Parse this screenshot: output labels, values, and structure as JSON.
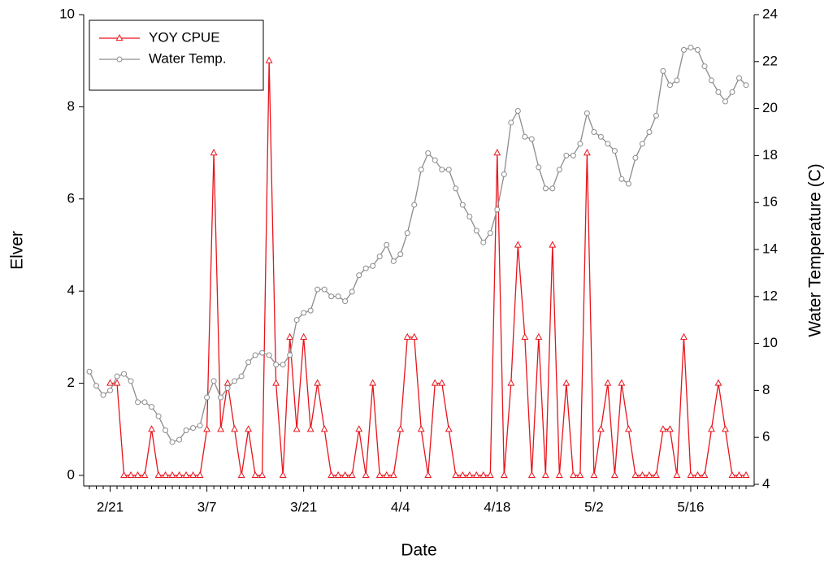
{
  "chart_data": {
    "type": "line",
    "x_label": "Date",
    "y_label": "Elver",
    "y2_label": "Water Temperature (C)",
    "categories": [
      null,
      null,
      null,
      "2/21",
      null,
      null,
      null,
      null,
      null,
      null,
      null,
      null,
      null,
      null,
      null,
      null,
      null,
      "3/7",
      null,
      null,
      null,
      null,
      null,
      null,
      null,
      null,
      null,
      null,
      null,
      null,
      null,
      "3/21",
      null,
      null,
      null,
      null,
      null,
      null,
      null,
      null,
      null,
      null,
      null,
      null,
      null,
      "4/4",
      null,
      null,
      null,
      null,
      null,
      null,
      null,
      null,
      null,
      null,
      null,
      null,
      null,
      "4/18",
      null,
      null,
      null,
      null,
      null,
      null,
      null,
      null,
      null,
      null,
      null,
      null,
      null,
      "5/2",
      null,
      null,
      null,
      null,
      null,
      null,
      null,
      null,
      null,
      null,
      null,
      null,
      null,
      "5/16",
      null,
      null,
      null,
      null,
      null,
      null,
      null,
      null
    ],
    "series": [
      {
        "name": "YOY CPUE",
        "color": "#e8141c",
        "marker": "triangle",
        "axis": "y",
        "values": [
          null,
          null,
          null,
          2,
          2,
          0,
          0,
          0,
          0,
          1,
          0,
          0,
          0,
          0,
          0,
          0,
          0,
          1,
          7,
          1,
          2,
          1,
          0,
          1,
          0,
          0,
          9,
          2,
          0,
          3,
          1,
          3,
          1,
          2,
          1,
          0,
          0,
          0,
          0,
          1,
          0,
          2,
          0,
          0,
          0,
          1,
          3,
          3,
          1,
          0,
          2,
          2,
          1,
          0,
          0,
          0,
          0,
          0,
          0,
          7,
          0,
          2,
          5,
          3,
          0,
          3,
          0,
          5,
          0,
          2,
          0,
          0,
          7,
          0,
          1,
          2,
          0,
          2,
          1,
          0,
          0,
          0,
          0,
          1,
          1,
          0,
          3,
          0,
          0,
          0,
          1,
          2,
          1,
          0,
          0,
          0
        ]
      },
      {
        "name": "Water Temp.",
        "color": "#8c8c8c",
        "marker": "circle",
        "axis": "y2",
        "values": [
          8.8,
          8.2,
          7.8,
          8.0,
          8.6,
          8.7,
          8.4,
          7.5,
          7.5,
          7.3,
          6.9,
          6.3,
          5.8,
          5.9,
          6.3,
          6.4,
          6.5,
          7.7,
          8.4,
          7.7,
          8.1,
          8.4,
          8.6,
          9.2,
          9.5,
          9.6,
          9.5,
          9.1,
          9.1,
          9.5,
          11.0,
          11.3,
          11.4,
          12.3,
          12.3,
          12.0,
          12.0,
          11.8,
          12.2,
          12.9,
          13.2,
          13.3,
          13.7,
          14.2,
          13.5,
          13.8,
          14.7,
          15.9,
          17.4,
          18.1,
          17.8,
          17.4,
          17.4,
          16.6,
          15.9,
          15.4,
          14.8,
          14.3,
          14.7,
          15.7,
          17.2,
          19.4,
          19.9,
          18.8,
          18.7,
          17.5,
          16.6,
          16.6,
          17.4,
          18.0,
          18.0,
          18.5,
          19.8,
          19.0,
          18.8,
          18.5,
          18.2,
          17.0,
          16.8,
          17.9,
          18.5,
          19.0,
          19.7,
          21.6,
          21.0,
          21.2,
          22.5,
          22.6,
          22.5,
          21.8,
          21.2,
          20.7,
          20.3,
          20.7,
          21.3,
          21.0
        ]
      }
    ],
    "ylim": [
      -0.23,
      10
    ],
    "yticks": [
      0,
      2,
      4,
      6,
      8,
      10
    ],
    "y2lim": [
      3.93,
      24
    ],
    "y2ticks": [
      4,
      6,
      8,
      10,
      12,
      14,
      16,
      18,
      20,
      22,
      24
    ],
    "legend": "upper-left"
  }
}
